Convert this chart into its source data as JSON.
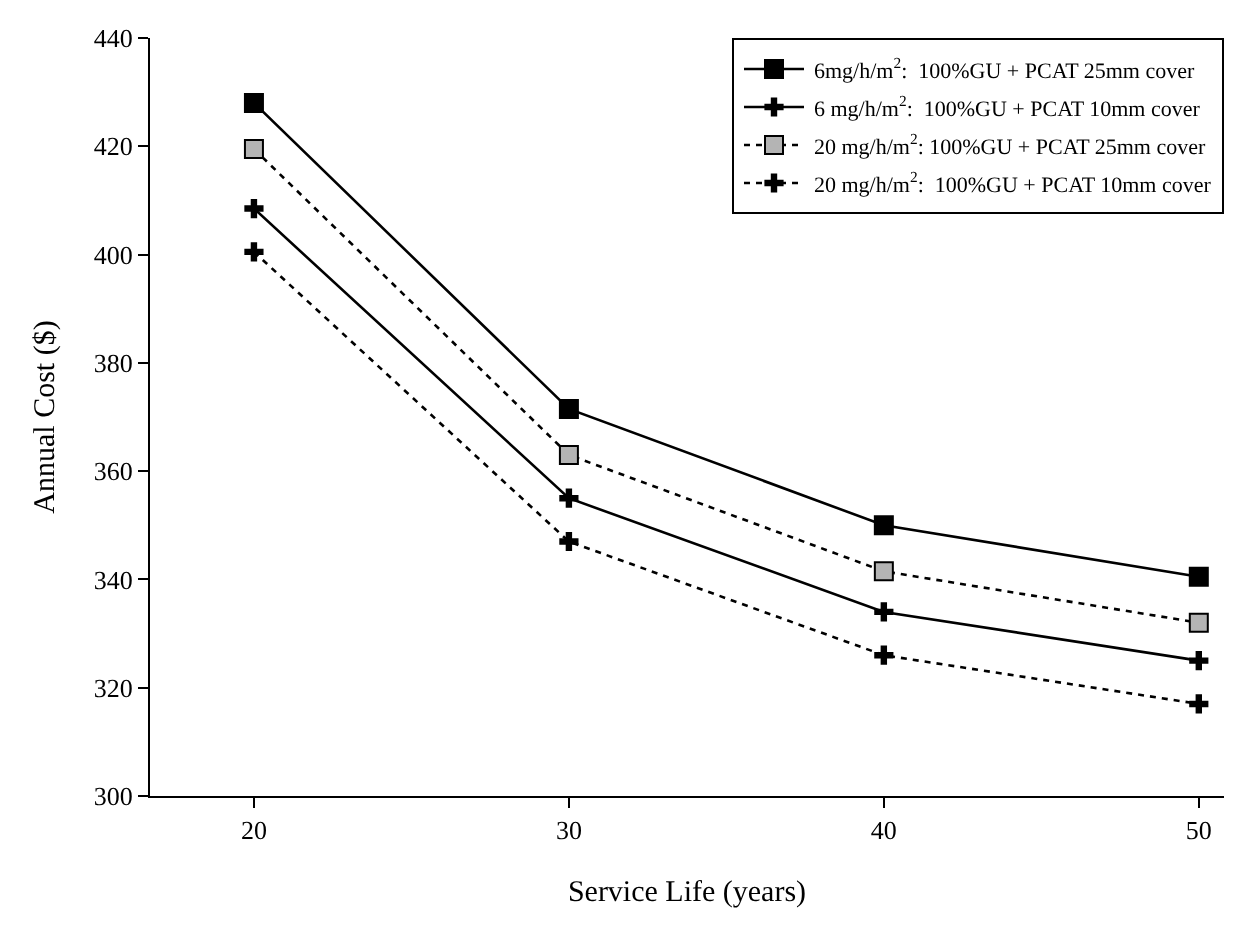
{
  "chart_data": {
    "type": "line",
    "xlabel": "Service Life (years)",
    "ylabel": "Annual Cost ($)",
    "x": [
      20,
      30,
      40,
      50
    ],
    "xlim": [
      16.7,
      50.8
    ],
    "xticks": [
      20,
      30,
      40,
      50
    ],
    "ylim": [
      300,
      440
    ],
    "yticks": [
      300,
      320,
      340,
      360,
      380,
      400,
      420,
      440
    ],
    "legend": "top right",
    "series": [
      {
        "name": "6mg/h/m$^{2}$:  100%GU + PCAT 25mm cover",
        "color": "#000000",
        "marker": "square",
        "line_style": "solid",
        "values": [
          428,
          371.5,
          350,
          340.5
        ]
      },
      {
        "name": "6 mg/h/m$^{2}$:  100%GU + PCAT 10mm cover",
        "color": "#000000",
        "marker": "cross",
        "line_style": "solid",
        "values": [
          408.5,
          355,
          334,
          325
        ]
      },
      {
        "name": "20 mg/h/m$^{2}$: 100%GU + PCAT 25mm cover",
        "color": "#b4b4b4",
        "marker": "square",
        "line_style": "dotted",
        "values": [
          419.5,
          363,
          341.5,
          332
        ]
      },
      {
        "name": "20 mg/h/m$^{2}$:  100%GU + PCAT 10mm cover",
        "color": "#000000",
        "marker": "cross",
        "line_style": "dotted",
        "values": [
          400.5,
          347,
          326,
          317
        ]
      }
    ]
  }
}
